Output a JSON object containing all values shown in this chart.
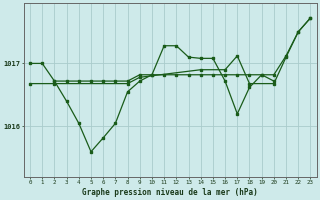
{
  "background_color": "#ceeaea",
  "grid_color": "#aacccc",
  "line_color": "#1a5c1a",
  "line1_x": [
    0,
    1,
    2,
    3,
    4,
    5,
    6,
    7,
    8,
    9,
    10,
    11,
    12,
    13,
    14,
    15,
    16,
    17,
    18,
    19,
    20
  ],
  "line1_y": [
    1017.0,
    1017.0,
    1016.72,
    1016.72,
    1016.72,
    1016.72,
    1016.72,
    1016.72,
    1016.72,
    1016.82,
    1016.82,
    1016.82,
    1016.82,
    1016.82,
    1016.82,
    1016.82,
    1016.82,
    1016.82,
    1016.82,
    1016.82,
    1016.72
  ],
  "line2_x": [
    2,
    3,
    4,
    5,
    6,
    7,
    8,
    9,
    10,
    11,
    12,
    13,
    14,
    15,
    16,
    17,
    18,
    19,
    20,
    21,
    22,
    23
  ],
  "line2_y": [
    1016.72,
    1016.4,
    1016.05,
    1015.6,
    1015.82,
    1016.05,
    1016.55,
    1016.72,
    1016.82,
    1017.28,
    1017.28,
    1017.1,
    1017.08,
    1017.08,
    1016.72,
    1016.2,
    1016.62,
    1016.82,
    1016.82,
    1017.12,
    1017.5,
    1017.72
  ],
  "line3_x": [
    0,
    2,
    8,
    9,
    14,
    16,
    17,
    18,
    20,
    21,
    22,
    23
  ],
  "line3_y": [
    1016.68,
    1016.68,
    1016.68,
    1016.78,
    1016.9,
    1016.9,
    1017.12,
    1016.68,
    1016.68,
    1017.1,
    1017.5,
    1017.72
  ],
  "yticks": [
    1016,
    1017
  ],
  "xticks": [
    0,
    1,
    2,
    3,
    4,
    5,
    6,
    7,
    8,
    9,
    10,
    11,
    12,
    13,
    14,
    15,
    16,
    17,
    18,
    19,
    20,
    21,
    22,
    23
  ],
  "xlabel": "Graphe pression niveau de la mer (hPa)",
  "ylim": [
    1015.2,
    1017.95
  ],
  "xlim": [
    -0.5,
    23.5
  ]
}
